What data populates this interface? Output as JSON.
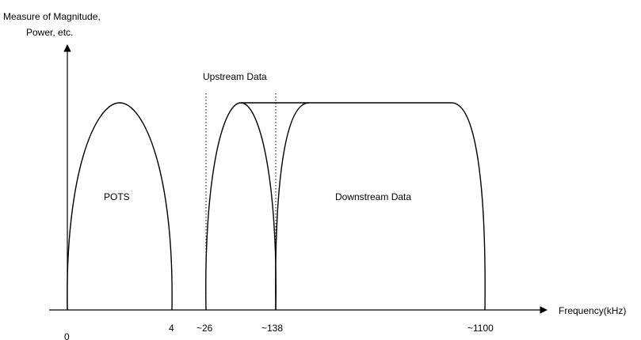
{
  "y_axis_label": [
    "Measure of Magnitude,",
    "Power, etc."
  ],
  "x_axis_label": "Frequency(kHz)",
  "bands": {
    "pots": "POTS",
    "upstream": "Upstream Data",
    "downstream": "Downstream Data"
  },
  "ticks": [
    "0",
    "4",
    "~26",
    "~138",
    "~1100"
  ]
}
